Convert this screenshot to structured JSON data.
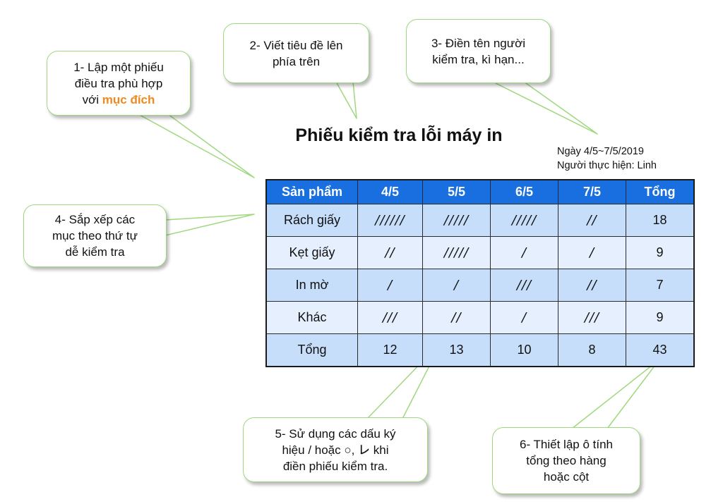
{
  "callouts": {
    "step1": {
      "line1": "1- Lập một phiếu",
      "line2": "điều tra phù hợp",
      "line3_prefix": "với ",
      "line3_highlight": "mục đích"
    },
    "step2": {
      "line1": "2- Viết tiêu đề lên",
      "line2": "phía trên"
    },
    "step3": {
      "line1": "3- Điền tên người",
      "line2": "kiểm tra, kì hạn..."
    },
    "step4": {
      "line1": "4- Sắp xếp các",
      "line2": "mục theo thứ tự",
      "line3": "dễ kiểm tra"
    },
    "step5": {
      "line1": "5- Sử dụng các dấu ký",
      "line2": "hiệu / hoặc ○, ㆑ khi",
      "line3": "điền phiếu kiểm tra."
    },
    "step6": {
      "line1": "6- Thiết lập ô tính",
      "line2": "tổng theo hàng",
      "line3": "hoặc cột"
    }
  },
  "sheet": {
    "title": "Phiếu kiểm tra lỗi máy in",
    "date_line": "Ngày 4/5~7/5/2019",
    "inspector_line": "Người thực hiện: Linh",
    "headers": [
      "Sản phẩm",
      "4/5",
      "5/5",
      "6/5",
      "7/5",
      "Tổng"
    ],
    "rows": [
      {
        "label": "Rách giấy",
        "tallies": [
          "//////",
          "/////",
          "/////",
          "//"
        ],
        "total": "18"
      },
      {
        "label": "Kẹt giấy",
        "tallies": [
          "//",
          "/////",
          "/",
          "/"
        ],
        "total": "9"
      },
      {
        "label": "In mờ",
        "tallies": [
          "/",
          "/",
          "///",
          "//"
        ],
        "total": "7"
      },
      {
        "label": "Khác",
        "tallies": [
          "///",
          "//",
          "/",
          "///"
        ],
        "total": "9"
      }
    ],
    "footer": {
      "label": "Tổng",
      "values": [
        "12",
        "13",
        "10",
        "8"
      ],
      "grand_total": "43"
    }
  },
  "colors": {
    "header_blue": "#1a6fe0",
    "row_light": "#e6effd",
    "row_mid": "#c6defa",
    "callout_border": "#9fd87e",
    "highlight_orange": "#f0891f"
  }
}
